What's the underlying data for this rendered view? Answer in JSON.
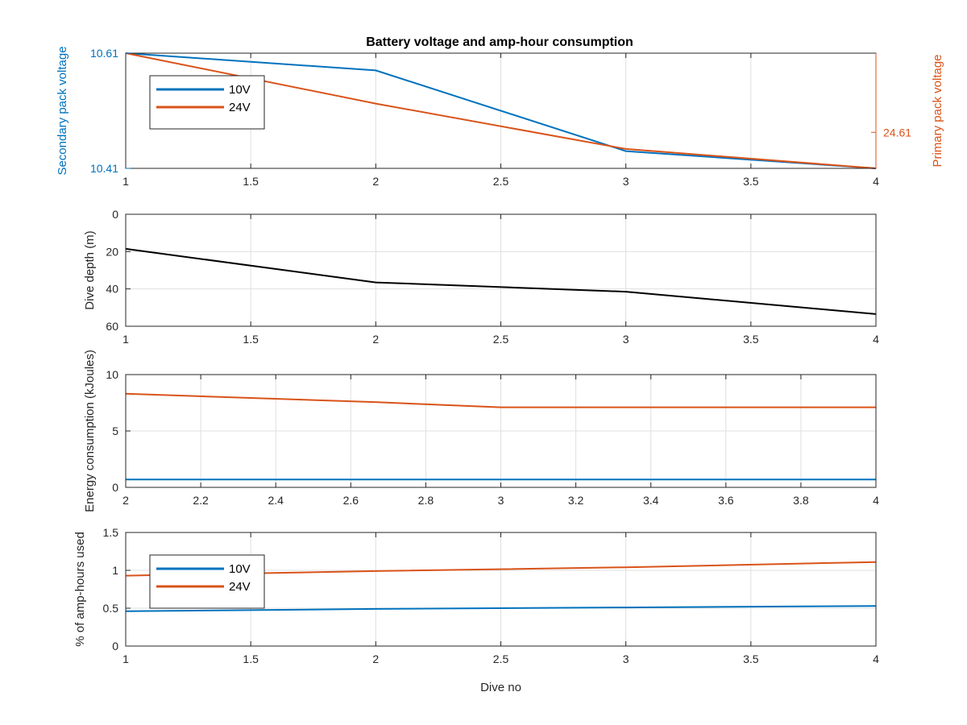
{
  "figure": {
    "title": "Battery voltage and amp-hour consumption",
    "colors": {
      "blue": "#0072BD",
      "orange": "#D95319",
      "black": "#000000",
      "axis": "#262626",
      "grid": "#dfdfdf"
    }
  },
  "chart_data": [
    {
      "type": "line",
      "title": "Battery voltage and amp-hour consumption",
      "xlabel": "",
      "xlim": [
        1,
        4
      ],
      "xticks": [
        1,
        1.5,
        2,
        2.5,
        3,
        3.5,
        4
      ],
      "grid": true,
      "legend_position": "top-left",
      "left_axis": {
        "label": "Secondary pack voltage",
        "ylim": [
          10.41,
          10.61
        ],
        "ticks": [
          "10.61",
          "10.41"
        ],
        "color": "#0072BD"
      },
      "right_axis": {
        "label": "Primary pack voltage",
        "ylim": [
          24.56,
          24.72
        ],
        "ticks": [
          "24.61"
        ],
        "tick_values": [
          24.61
        ],
        "color": "#D95319"
      },
      "series": [
        {
          "name": "10V",
          "axis": "left",
          "color": "#0072BD",
          "x": [
            1,
            2,
            3,
            4
          ],
          "y": [
            10.61,
            10.58,
            10.44,
            10.41
          ]
        },
        {
          "name": "24V",
          "axis": "right",
          "color": "#D95319",
          "x": [
            1,
            2,
            3,
            4
          ],
          "y": [
            24.72,
            24.65,
            24.587,
            24.56
          ]
        }
      ]
    },
    {
      "type": "line",
      "xlabel": "",
      "ylabel": "Dive depth (m)",
      "xlim": [
        1,
        4
      ],
      "xticks": [
        1,
        1.5,
        2,
        2.5,
        3,
        3.5,
        4
      ],
      "ylim": [
        0,
        60
      ],
      "yticks": [
        0,
        20,
        40,
        60
      ],
      "y_reversed": true,
      "grid": true,
      "series": [
        {
          "color": "#000000",
          "x": [
            1,
            2,
            3,
            4
          ],
          "y": [
            18.5,
            36.5,
            41.5,
            53.5
          ]
        }
      ]
    },
    {
      "type": "line",
      "xlabel": "",
      "ylabel": "Energy consumption (kJoules)",
      "xlim": [
        2,
        4
      ],
      "xticks": [
        2,
        2.2,
        2.4,
        2.6,
        2.8,
        3,
        3.2,
        3.4,
        3.6,
        3.8,
        4
      ],
      "ylim": [
        0,
        10
      ],
      "yticks": [
        0,
        5,
        10
      ],
      "grid": true,
      "series": [
        {
          "color": "#D95319",
          "x": [
            2,
            2.67,
            3,
            3.33,
            4
          ],
          "y": [
            8.3,
            7.55,
            7.1,
            7.1,
            7.1
          ]
        },
        {
          "color": "#0072BD",
          "x": [
            2,
            4
          ],
          "y": [
            0.7,
            0.7
          ]
        }
      ]
    },
    {
      "type": "line",
      "xlabel": "Dive no",
      "ylabel": "% of amp-hours used",
      "xlim": [
        1,
        4
      ],
      "xticks": [
        1,
        1.5,
        2,
        2.5,
        3,
        3.5,
        4
      ],
      "ylim": [
        0,
        1.5
      ],
      "yticks": [
        0,
        0.5,
        1,
        1.5
      ],
      "grid": true,
      "legend_position": "top-left",
      "series": [
        {
          "name": "10V",
          "color": "#0072BD",
          "x": [
            1,
            2,
            3,
            4
          ],
          "y": [
            0.46,
            0.49,
            0.51,
            0.53
          ]
        },
        {
          "name": "24V",
          "color": "#D95319",
          "x": [
            1,
            2,
            3,
            4
          ],
          "y": [
            0.93,
            0.99,
            1.04,
            1.11
          ]
        }
      ]
    }
  ]
}
